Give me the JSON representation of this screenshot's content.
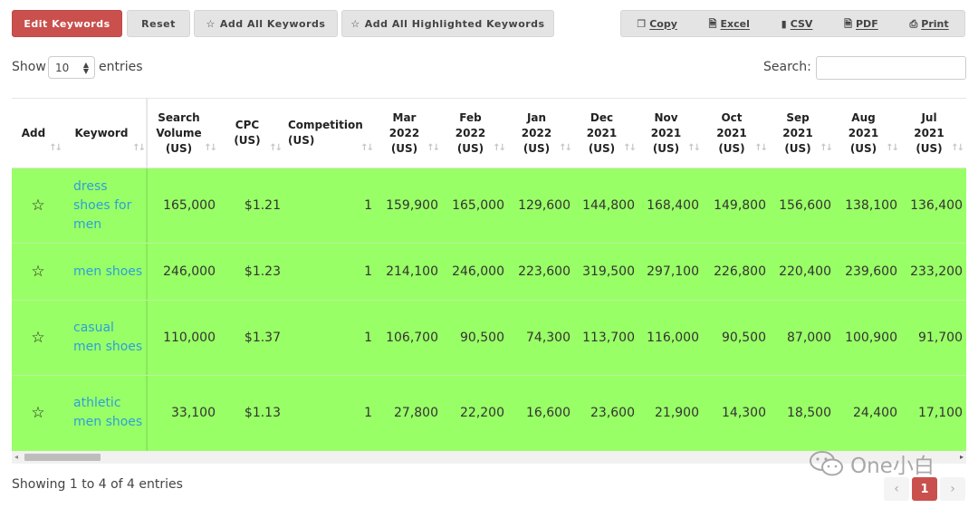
{
  "buttons": {
    "edit_keywords": "Edit Keywords",
    "reset": "Reset",
    "add_all": "Add All Keywords",
    "add_highlighted": "Add All Highlighted Keywords"
  },
  "export": {
    "copy": "Copy",
    "excel": "Excel",
    "csv": "CSV",
    "pdf": "PDF",
    "print": "Print"
  },
  "length": {
    "show_label": "Show",
    "selected": "10",
    "entries_label": "entries"
  },
  "search": {
    "label": "Search:",
    "value": ""
  },
  "table": {
    "headers": [
      "Add",
      "Keyword",
      "Search Volume (US)",
      "CPC (US)",
      "Competition (US)",
      "Mar 2022 (US)",
      "Feb 2022 (US)",
      "Jan 2022 (US)",
      "Dec 2021 (US)",
      "Nov 2021 (US)",
      "Oct 2021 (US)",
      "Sep 2021 (US)",
      "Aug 2021 (US)",
      "Jul 2021 (US)"
    ],
    "rows": [
      {
        "keyword": "dress shoes for men",
        "volume": "165,000",
        "cpc": "$1.21",
        "competition": "1",
        "months": [
          "159,900",
          "165,000",
          "129,600",
          "144,800",
          "168,400",
          "149,800",
          "156,600",
          "138,100",
          "136,400"
        ]
      },
      {
        "keyword": "men shoes",
        "volume": "246,000",
        "cpc": "$1.23",
        "competition": "1",
        "months": [
          "214,100",
          "246,000",
          "223,600",
          "319,500",
          "297,100",
          "226,800",
          "220,400",
          "239,600",
          "233,200"
        ]
      },
      {
        "keyword": "casual men shoes",
        "volume": "110,000",
        "cpc": "$1.37",
        "competition": "1",
        "months": [
          "106,700",
          "90,500",
          "74,300",
          "113,700",
          "116,000",
          "90,500",
          "87,000",
          "100,900",
          "91,700"
        ]
      },
      {
        "keyword": "athletic men shoes",
        "volume": "33,100",
        "cpc": "$1.13",
        "competition": "1",
        "months": [
          "27,800",
          "22,200",
          "16,600",
          "23,600",
          "21,900",
          "14,300",
          "18,500",
          "24,400",
          "17,100"
        ]
      }
    ]
  },
  "footer": {
    "info": "Showing 1 to 4 of 4 entries",
    "current_page": "1"
  },
  "watermark": "One小白",
  "colors": {
    "accent": "#c9504d",
    "highlight": "#99ff66",
    "link": "#2e9fd9"
  },
  "icons": {
    "add_all": "star-outline-icon",
    "add_highlighted": "star-outline-icon",
    "copy": "copy-icon",
    "excel": "file-excel-icon",
    "csv": "file-csv-icon",
    "pdf": "file-pdf-icon",
    "print": "printer-icon",
    "row_add": "star-outline-icon",
    "sort": "sort-arrows-icon",
    "prev": "chevron-left-icon",
    "next": "chevron-right-icon"
  }
}
